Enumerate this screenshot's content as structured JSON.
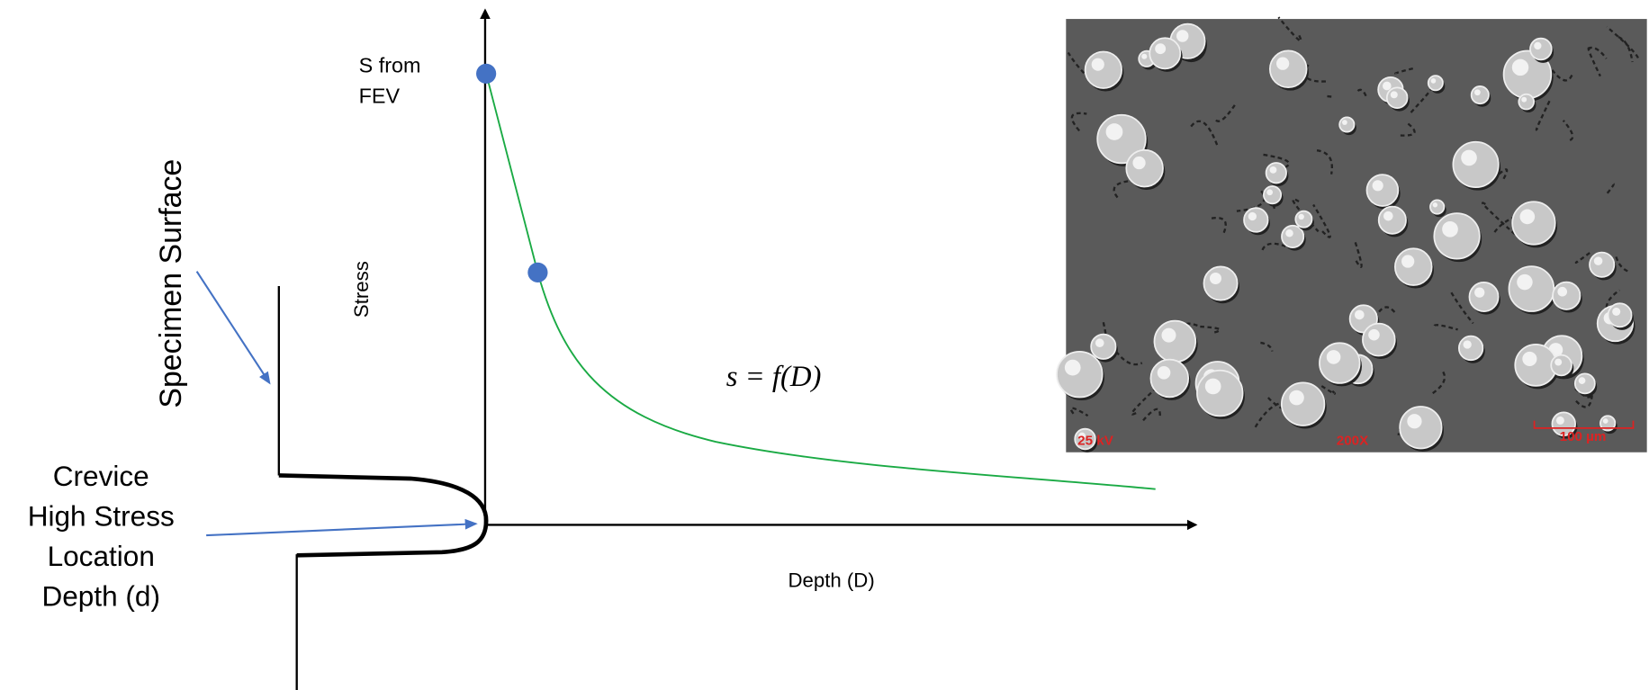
{
  "labels": {
    "specimen_surface": "Specimen Surface",
    "crevice": [
      "Crevice",
      "High Stress",
      "Location",
      "Depth (d)"
    ],
    "s_from_fev": [
      "S from",
      "FEV"
    ],
    "y_axis": "Stress",
    "x_axis": "Depth (D)",
    "equation": "s = f(D)",
    "micrograph": {
      "voltage": "25 kV",
      "magnification": "200X",
      "scale_bar": "100 µm"
    }
  }
}
